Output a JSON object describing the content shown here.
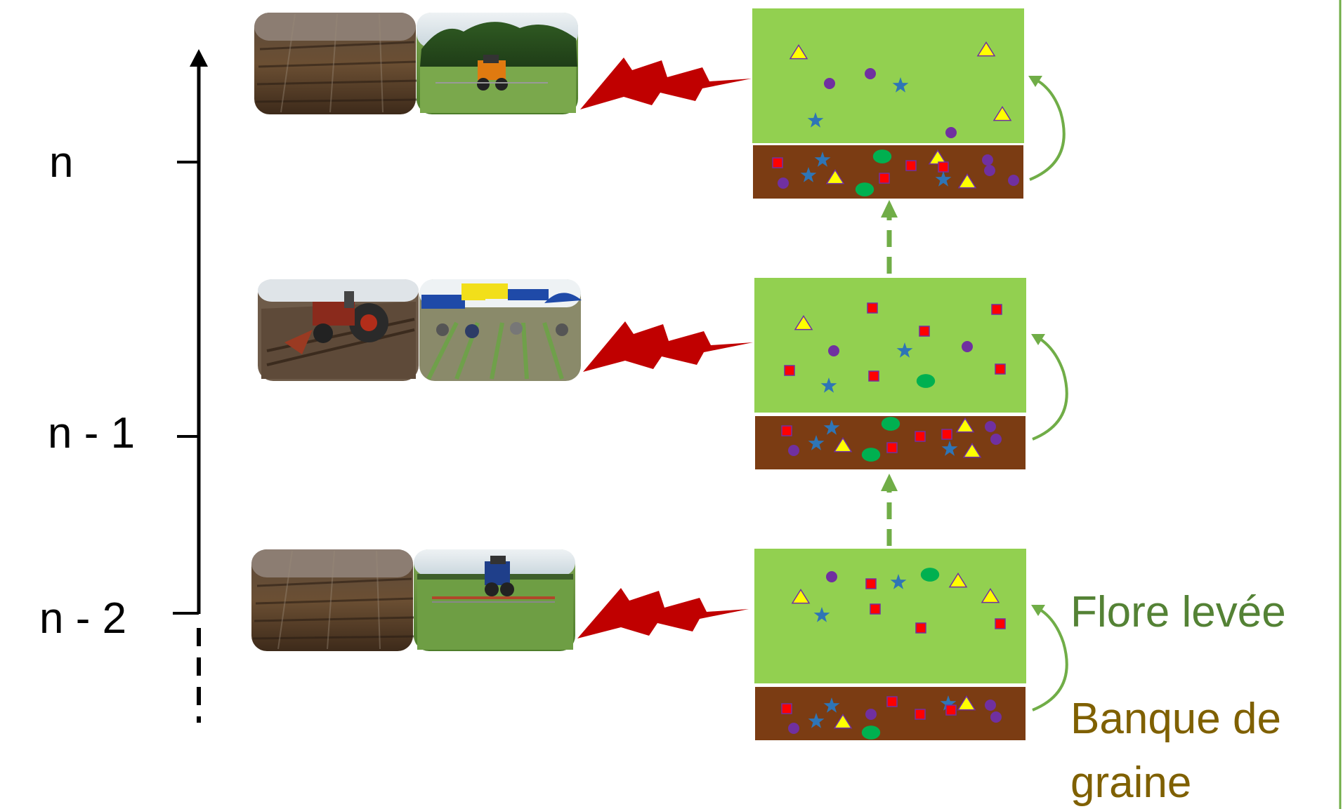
{
  "timeline": {
    "labels": [
      "n",
      "n - 1",
      "n - 2"
    ],
    "color": "#000000"
  },
  "legend": {
    "emerged_label": "Flore levée",
    "seedbank_label_line1": "Banque de",
    "seedbank_label_line2": "graine",
    "emerged_color": "#548235",
    "seedbank_color": "#7f6000"
  },
  "colors": {
    "emerged_flora_bg": "#92d050",
    "seedbank_bg": "#7b3c13",
    "lightning": "#c00000",
    "arrow": "#70ad47",
    "seed_square": "#ff0000",
    "seed_circle": "#7030a0",
    "seed_star": "#2e75b6",
    "seed_triangle": "#ffff00",
    "seed_blob": "#00b050"
  },
  "rows": [
    {
      "year": "n",
      "photos": [
        "ploughed-field-photo",
        "tractor-spraying-photo"
      ]
    },
    {
      "year": "n - 1",
      "photos": [
        "tractor-ploughing-photo",
        "manual-weeding-photo"
      ]
    },
    {
      "year": "n - 2",
      "photos": [
        "ploughed-field-photo",
        "harrow-weeding-photo"
      ]
    }
  ]
}
